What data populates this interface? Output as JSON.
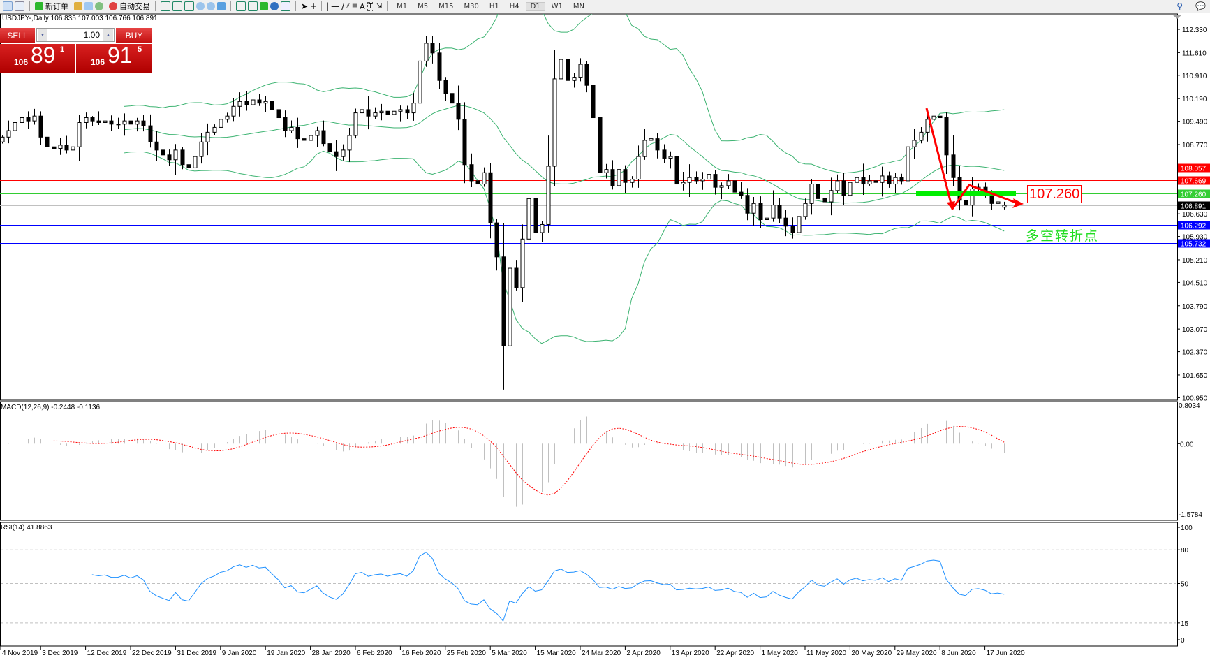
{
  "toolbar": {
    "new_order": "新订单",
    "auto_trading": "自动交易",
    "timeframes": [
      "M1",
      "M5",
      "M15",
      "M30",
      "H1",
      "H4",
      "D1",
      "W1",
      "MN"
    ],
    "active_timeframe": "D1"
  },
  "chart": {
    "title": "USDJPY-,Daily  106.835 107.003 106.766 106.891",
    "symbol": "USDJPY-",
    "period": "Daily",
    "last_ohlc": [
      106.835,
      107.003,
      106.766,
      106.891
    ]
  },
  "one_click": {
    "sell_label": "SELL",
    "buy_label": "BUY",
    "lot": "1.00",
    "sell_big": "106",
    "sell_main": "89",
    "sell_frac": "1",
    "buy_big": "106",
    "buy_main": "91",
    "buy_frac": "5",
    "color": "#cc1010"
  },
  "price_axis": {
    "ticks": [
      "112.330",
      "111.610",
      "110.910",
      "110.190",
      "109.490",
      "108.770",
      "106.630",
      "105.930",
      "105.210",
      "104.510",
      "103.790",
      "103.070",
      "102.370",
      "101.650",
      "100.950"
    ]
  },
  "levels": [
    {
      "price": 108.057,
      "label": "108.057",
      "color": "#ff0000"
    },
    {
      "price": 107.669,
      "label": "107.669",
      "color": "#ff0000"
    },
    {
      "price": 107.26,
      "label": "107.260",
      "color": "#32cd32"
    },
    {
      "price": 106.891,
      "label": "106.891",
      "color": "#000000",
      "line": "#c0c0c0"
    },
    {
      "price": 106.292,
      "label": "106.292",
      "color": "#0000ff"
    },
    {
      "price": 105.732,
      "label": "105.732",
      "color": "#0000ff"
    }
  ],
  "annotations": {
    "level_label": "107.260",
    "note": "多空转折点",
    "arrow_color": "#ff0000",
    "zone_color": "#00ee00"
  },
  "macd": {
    "label": "MACD(12,26,9) -0.2448 -0.1136",
    "max_label": "0.8034",
    "zero_label": "0.00",
    "min_label": "-1.5784",
    "range": [
      -1.5784,
      0.8034
    ]
  },
  "rsi": {
    "label": "RSI(14) 41.8863",
    "ticks": [
      "100",
      "80",
      "50",
      "15",
      "0"
    ],
    "levels": [
      80,
      50,
      15
    ]
  },
  "dates": [
    "4 Nov 2019",
    "3 Dec 2019",
    "12 Dec 2019",
    "22 Dec 2019",
    "31 Dec 2019",
    "9 Jan 2020",
    "19 Jan 2020",
    "28 Jan 2020",
    "6 Feb 2020",
    "16 Feb 2020",
    "25 Feb 2020",
    "5 Mar 2020",
    "15 Mar 2020",
    "24 Mar 2020",
    "2 Apr 2020",
    "13 Apr 2020",
    "22 Apr 2020",
    "1 May 2020",
    "11 May 2020",
    "20 May 2020",
    "29 May 2020",
    "8 Jun 2020",
    "17 Jun 2020"
  ],
  "chart_data": {
    "type": "candlestick",
    "price_range": [
      100.95,
      112.33
    ],
    "closes": [
      109.0,
      109.2,
      109.45,
      109.6,
      109.5,
      109.65,
      109.0,
      108.7,
      108.65,
      108.75,
      108.6,
      108.7,
      109.45,
      109.6,
      109.5,
      109.45,
      109.5,
      109.4,
      109.4,
      109.5,
      109.4,
      109.5,
      109.35,
      108.85,
      108.6,
      108.45,
      108.3,
      108.6,
      108.15,
      108.05,
      108.4,
      108.85,
      109.15,
      109.3,
      109.55,
      109.65,
      109.95,
      110.1,
      110.0,
      110.15,
      110.05,
      110.1,
      109.85,
      109.6,
      109.2,
      109.3,
      108.95,
      108.9,
      109.05,
      109.2,
      108.8,
      108.55,
      108.4,
      108.6,
      109.05,
      109.75,
      109.85,
      109.65,
      109.75,
      109.8,
      109.7,
      109.8,
      109.85,
      109.75,
      110.05,
      111.35,
      111.9,
      111.6,
      110.75,
      110.35,
      110.05,
      109.55,
      108.15,
      107.65,
      107.55,
      107.9,
      106.35,
      105.3,
      102.55,
      104.95,
      104.35,
      105.85,
      107.1,
      106.05,
      106.3,
      108.1,
      110.8,
      111.4,
      110.75,
      110.85,
      111.25,
      110.6,
      109.6,
      107.9,
      108.0,
      107.5,
      108.0,
      107.6,
      107.7,
      108.4,
      108.9,
      108.95,
      108.6,
      108.35,
      108.4,
      107.55,
      107.6,
      107.75,
      107.65,
      107.7,
      107.85,
      107.45,
      107.5,
      107.65,
      107.3,
      107.2,
      106.65,
      106.95,
      106.45,
      106.5,
      106.9,
      106.5,
      106.25,
      106.05,
      106.55,
      106.95,
      107.55,
      107.1,
      107.0,
      107.35,
      107.65,
      107.2,
      107.6,
      107.75,
      107.55,
      107.65,
      107.6,
      107.8,
      107.55,
      107.75,
      107.65,
      108.7,
      108.9,
      109.15,
      109.55,
      109.65,
      109.6,
      108.45,
      107.75,
      107.05,
      106.9,
      107.4,
      107.45,
      107.3,
      106.95,
      107.0,
      106.891
    ],
    "indicators": [
      "Bollinger Bands(20,2)",
      "MACD(12,26,9)",
      "RSI(14)"
    ],
    "colors": {
      "bull": "#ffffff",
      "bear": "#000000",
      "bands": "#3cb371",
      "macd_hist": "#c0c0c0",
      "macd_signal": "#ff0000",
      "rsi": "#1e90ff"
    }
  }
}
